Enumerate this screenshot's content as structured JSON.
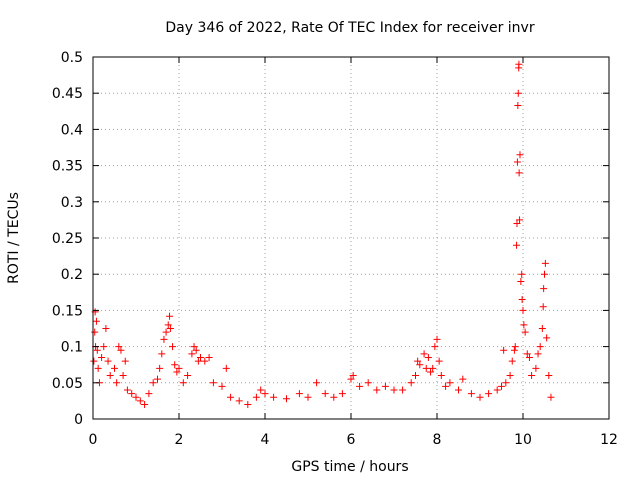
{
  "chart_data": {
    "type": "scatter",
    "title": "Day 346 of 2022, Rate Of TEC Index for receiver invr",
    "xlabel": "GPS time / hours",
    "ylabel": "ROTI / TECUs",
    "xlim": [
      0,
      12
    ],
    "ylim": [
      0,
      0.5
    ],
    "xticks": [
      0,
      2,
      4,
      6,
      8,
      10,
      12
    ],
    "yticks": [
      0,
      0.05,
      0.1,
      0.15,
      0.2,
      0.25,
      0.3,
      0.35,
      0.4,
      0.45,
      0.5
    ],
    "xtick_labels": [
      "0",
      "2",
      "4",
      "6",
      "8",
      "10",
      "12"
    ],
    "ytick_labels": [
      "0",
      "0.05",
      "0.1",
      "0.15",
      "0.2",
      "0.25",
      "0.3",
      "0.35",
      "0.4",
      "0.45",
      "0.5"
    ],
    "grid": true,
    "marker": "+",
    "marker_color": "#ff0000",
    "series": [
      {
        "name": "ROTI",
        "color": "#ff0000",
        "points": [
          [
            0.02,
            0.08
          ],
          [
            0.04,
            0.12
          ],
          [
            0.05,
            0.148
          ],
          [
            0.06,
            0.1
          ],
          [
            0.08,
            0.135
          ],
          [
            0.1,
            0.095
          ],
          [
            0.12,
            0.07
          ],
          [
            0.15,
            0.05
          ],
          [
            0.2,
            0.085
          ],
          [
            0.25,
            0.1
          ],
          [
            0.3,
            0.125
          ],
          [
            0.35,
            0.08
          ],
          [
            0.4,
            0.06
          ],
          [
            0.5,
            0.07
          ],
          [
            0.55,
            0.05
          ],
          [
            0.6,
            0.1
          ],
          [
            0.65,
            0.095
          ],
          [
            0.7,
            0.06
          ],
          [
            0.75,
            0.08
          ],
          [
            0.8,
            0.04
          ],
          [
            0.9,
            0.035
          ],
          [
            1.0,
            0.03
          ],
          [
            1.1,
            0.025
          ],
          [
            1.2,
            0.02
          ],
          [
            1.3,
            0.035
          ],
          [
            1.4,
            0.05
          ],
          [
            1.5,
            0.055
          ],
          [
            1.55,
            0.07
          ],
          [
            1.6,
            0.09
          ],
          [
            1.65,
            0.11
          ],
          [
            1.7,
            0.12
          ],
          [
            1.75,
            0.13
          ],
          [
            1.78,
            0.142
          ],
          [
            1.8,
            0.125
          ],
          [
            1.85,
            0.1
          ],
          [
            1.9,
            0.075
          ],
          [
            1.95,
            0.065
          ],
          [
            2.0,
            0.07
          ],
          [
            2.1,
            0.05
          ],
          [
            2.2,
            0.06
          ],
          [
            2.3,
            0.09
          ],
          [
            2.35,
            0.1
          ],
          [
            2.4,
            0.095
          ],
          [
            2.45,
            0.08
          ],
          [
            2.5,
            0.085
          ],
          [
            2.6,
            0.08
          ],
          [
            2.7,
            0.085
          ],
          [
            2.8,
            0.05
          ],
          [
            3.0,
            0.045
          ],
          [
            3.1,
            0.07
          ],
          [
            3.2,
            0.03
          ],
          [
            3.4,
            0.025
          ],
          [
            3.6,
            0.02
          ],
          [
            3.8,
            0.03
          ],
          [
            3.9,
            0.04
          ],
          [
            4.0,
            0.035
          ],
          [
            4.2,
            0.03
          ],
          [
            4.5,
            0.028
          ],
          [
            4.8,
            0.035
          ],
          [
            5.0,
            0.03
          ],
          [
            5.2,
            0.05
          ],
          [
            5.4,
            0.035
          ],
          [
            5.6,
            0.03
          ],
          [
            5.8,
            0.035
          ],
          [
            6.0,
            0.055
          ],
          [
            6.05,
            0.06
          ],
          [
            6.2,
            0.045
          ],
          [
            6.4,
            0.05
          ],
          [
            6.6,
            0.04
          ],
          [
            6.8,
            0.045
          ],
          [
            7.0,
            0.04
          ],
          [
            7.2,
            0.04
          ],
          [
            7.4,
            0.05
          ],
          [
            7.5,
            0.06
          ],
          [
            7.55,
            0.08
          ],
          [
            7.6,
            0.075
          ],
          [
            7.7,
            0.09
          ],
          [
            7.75,
            0.07
          ],
          [
            7.8,
            0.085
          ],
          [
            7.85,
            0.065
          ],
          [
            7.9,
            0.07
          ],
          [
            7.95,
            0.1
          ],
          [
            8.0,
            0.11
          ],
          [
            8.05,
            0.08
          ],
          [
            8.1,
            0.06
          ],
          [
            8.2,
            0.045
          ],
          [
            8.3,
            0.05
          ],
          [
            8.5,
            0.04
          ],
          [
            8.6,
            0.055
          ],
          [
            8.8,
            0.035
          ],
          [
            9.0,
            0.03
          ],
          [
            9.2,
            0.035
          ],
          [
            9.4,
            0.04
          ],
          [
            9.5,
            0.045
          ],
          [
            9.55,
            0.095
          ],
          [
            9.6,
            0.05
          ],
          [
            9.7,
            0.06
          ],
          [
            9.75,
            0.08
          ],
          [
            9.8,
            0.095
          ],
          [
            9.82,
            0.1
          ],
          [
            9.85,
            0.24
          ],
          [
            9.86,
            0.27
          ],
          [
            9.87,
            0.355
          ],
          [
            9.88,
            0.433
          ],
          [
            9.89,
            0.45
          ],
          [
            9.9,
            0.485
          ],
          [
            9.905,
            0.49
          ],
          [
            9.91,
            0.34
          ],
          [
            9.92,
            0.275
          ],
          [
            9.93,
            0.365
          ],
          [
            9.95,
            0.19
          ],
          [
            9.97,
            0.2
          ],
          [
            9.98,
            0.165
          ],
          [
            10.0,
            0.15
          ],
          [
            10.02,
            0.13
          ],
          [
            10.05,
            0.12
          ],
          [
            10.1,
            0.09
          ],
          [
            10.15,
            0.085
          ],
          [
            10.2,
            0.06
          ],
          [
            10.3,
            0.07
          ],
          [
            10.35,
            0.09
          ],
          [
            10.4,
            0.1
          ],
          [
            10.45,
            0.125
          ],
          [
            10.47,
            0.155
          ],
          [
            10.48,
            0.18
          ],
          [
            10.5,
            0.2
          ],
          [
            10.52,
            0.215
          ],
          [
            10.55,
            0.112
          ],
          [
            10.6,
            0.06
          ],
          [
            10.65,
            0.03
          ]
        ]
      }
    ]
  }
}
